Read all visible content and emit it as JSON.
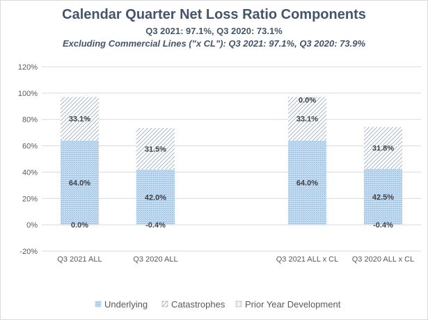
{
  "chart_data": {
    "type": "stacked-bar",
    "title": "Calendar Quarter Net Loss Ratio Components",
    "subtitle": "Q3 2021: 97.1%, Q3 2020: 73.1%",
    "subtitle2": "Excluding Commercial Lines (\"x CL\"): Q3 2021: 97.1%, Q3 2020: 73.9%",
    "categories": [
      "Q3 2021 ALL",
      "Q3 2020 ALL",
      "",
      "Q3 2021 ALL x CL",
      "Q3 2020 ALL x CL"
    ],
    "series": [
      {
        "name": "Underlying",
        "values": [
          64.0,
          42.0,
          null,
          64.0,
          42.5
        ],
        "labels": [
          "64.0%",
          "42.0%",
          "",
          "64.0%",
          "42.5%"
        ]
      },
      {
        "name": "Catastrophes",
        "values": [
          33.1,
          31.5,
          null,
          33.1,
          31.8
        ],
        "labels": [
          "33.1%",
          "31.5%",
          "",
          "33.1%",
          "31.8%"
        ]
      },
      {
        "name": "Prior Year Development",
        "values": [
          0.0,
          -0.4,
          null,
          0.0,
          -0.4
        ],
        "labels": [
          "0.0%",
          "-0.4%",
          "",
          "0.0%",
          "-0.4%"
        ]
      }
    ],
    "ylim": [
      -20,
      120
    ],
    "yticks": [
      -20,
      0,
      20,
      40,
      60,
      80,
      100,
      120
    ],
    "ytick_labels": [
      "-20%",
      "0%",
      "20%",
      "40%",
      "60%",
      "80%",
      "100%",
      "120%"
    ],
    "xlabel": "",
    "ylabel": "",
    "grid": true,
    "legend_position": "bottom",
    "colors": {
      "underlying": "#9dc3e6",
      "catastrophes": "#8497b0",
      "prior_year": "#bdd7ee",
      "grid": "#d9d9d9",
      "axis_text": "#595959",
      "label_text": "#404040",
      "title": "#44546a"
    }
  }
}
